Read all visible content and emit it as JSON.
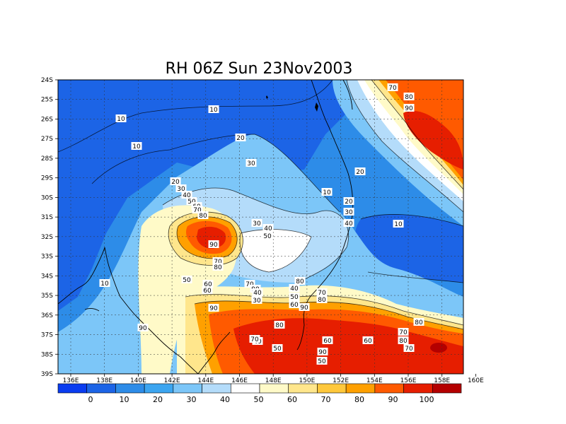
{
  "title": "RH 06Z Sun 23Nov2003",
  "x_ticks": [
    "136E",
    "138E",
    "140E",
    "142E",
    "144E",
    "146E",
    "148E",
    "150E",
    "152E",
    "154E",
    "156E",
    "158E",
    "160E"
  ],
  "y_ticks": [
    "24S",
    "25S",
    "26S",
    "27S",
    "28S",
    "29S",
    "30S",
    "31S",
    "32S",
    "33S",
    "34S",
    "35S",
    "36S",
    "37S",
    "38S",
    "39S"
  ],
  "colorbar": {
    "colors": [
      "#0a3cf0",
      "#1c64e6",
      "#2d8ce8",
      "#3ca5f0",
      "#7cc6f8",
      "#b4dcfa",
      "#ffffff",
      "#fffac8",
      "#ffe68c",
      "#ffc83c",
      "#ffa000",
      "#ff5a00",
      "#e61e00",
      "#b40000"
    ],
    "labels": [
      "0",
      "10",
      "20",
      "30",
      "40",
      "50",
      "60",
      "70",
      "80",
      "90",
      "100"
    ]
  },
  "contour_labels": [
    "10",
    "10",
    "10",
    "20",
    "30",
    "20",
    "30",
    "40",
    "50",
    "60",
    "70",
    "80",
    "90",
    "10",
    "20",
    "20",
    "30",
    "40",
    "10",
    "70",
    "80",
    "90",
    "30",
    "40",
    "50",
    "60",
    "70",
    "80",
    "50",
    "10",
    "60",
    "70",
    "90",
    "40",
    "30",
    "40",
    "50",
    "60",
    "70",
    "80",
    "90",
    "40",
    "50",
    "80",
    "90",
    "60",
    "50",
    "70",
    "80",
    "70",
    "80",
    "90",
    "60",
    "70",
    "80",
    "90"
  ]
}
